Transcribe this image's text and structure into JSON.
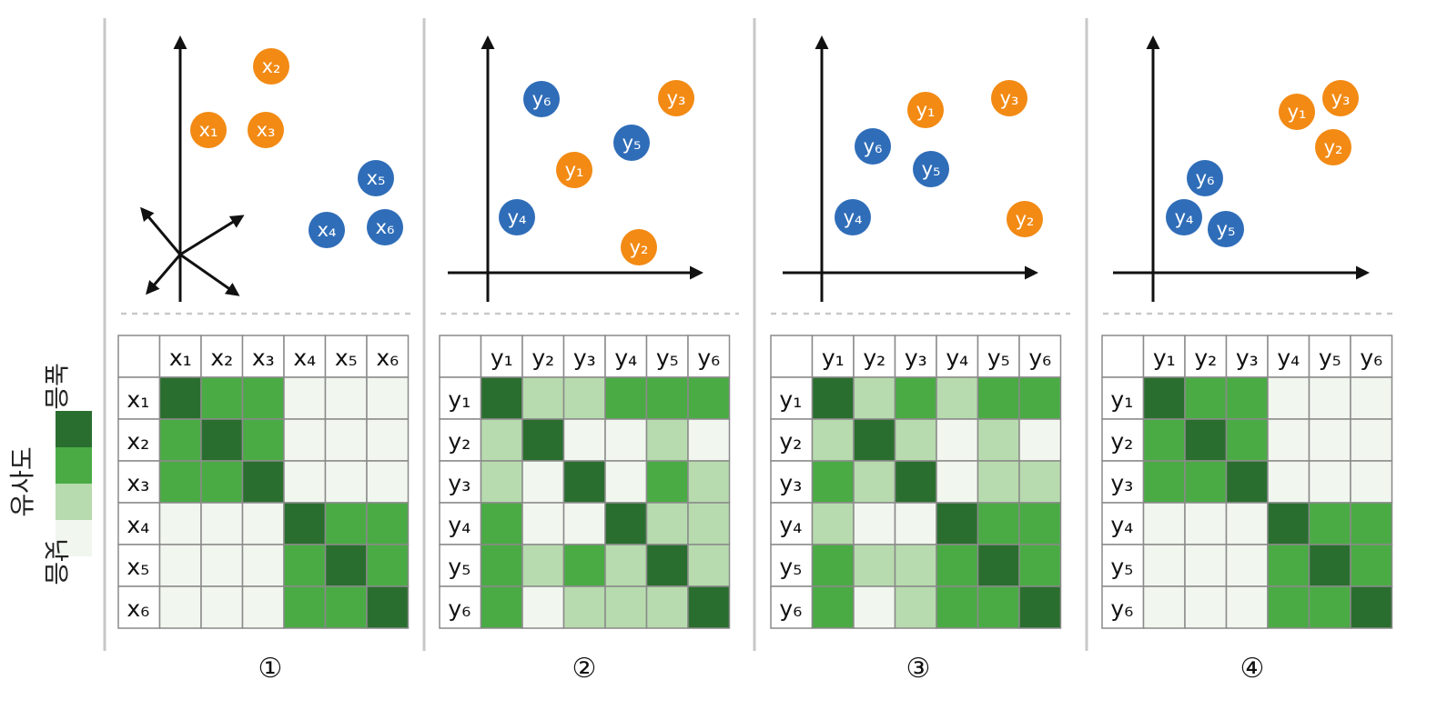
{
  "colors": {
    "orange": "#f28a14",
    "blue": "#2f6db8",
    "level_3": "#2a6e2f",
    "level_2": "#4aab45",
    "level_1": "#b7dbae",
    "level_0": "#f1f6ef"
  },
  "legend": {
    "high_label": "높음",
    "title": "유사도",
    "low_label": "낮음"
  },
  "panels": [
    {
      "number": "①",
      "axis_style": "3d",
      "var": "x",
      "headers": [
        "x₁",
        "x₂",
        "x₃",
        "x₄",
        "x₅",
        "x₆"
      ],
      "points": [
        {
          "label": "x₁",
          "color": "orange"
        },
        {
          "label": "x₂",
          "color": "orange"
        },
        {
          "label": "x₃",
          "color": "orange"
        },
        {
          "label": "x₄",
          "color": "blue"
        },
        {
          "label": "x₅",
          "color": "blue"
        },
        {
          "label": "x₆",
          "color": "blue"
        }
      ],
      "matrix": [
        [
          3,
          2,
          2,
          0,
          0,
          0
        ],
        [
          2,
          3,
          2,
          0,
          0,
          0
        ],
        [
          2,
          2,
          3,
          0,
          0,
          0
        ],
        [
          0,
          0,
          0,
          3,
          2,
          2
        ],
        [
          0,
          0,
          0,
          2,
          3,
          2
        ],
        [
          0,
          0,
          0,
          2,
          2,
          3
        ]
      ]
    },
    {
      "number": "②",
      "axis_style": "2d",
      "var": "y",
      "headers": [
        "y₁",
        "y₂",
        "y₃",
        "y₄",
        "y₅",
        "y₆"
      ],
      "points": [
        {
          "label": "y₆",
          "color": "blue"
        },
        {
          "label": "y₃",
          "color": "orange"
        },
        {
          "label": "y₅",
          "color": "blue"
        },
        {
          "label": "y₁",
          "color": "orange"
        },
        {
          "label": "y₄",
          "color": "blue"
        },
        {
          "label": "y₂",
          "color": "orange"
        }
      ],
      "matrix": [
        [
          3,
          1,
          1,
          2,
          2,
          2
        ],
        [
          1,
          3,
          0,
          0,
          1,
          0
        ],
        [
          1,
          0,
          3,
          0,
          2,
          1
        ],
        [
          2,
          0,
          0,
          3,
          1,
          1
        ],
        [
          2,
          1,
          2,
          1,
          3,
          1
        ],
        [
          2,
          0,
          1,
          1,
          1,
          3
        ]
      ]
    },
    {
      "number": "③",
      "axis_style": "2d",
      "var": "y",
      "headers": [
        "y₁",
        "y₂",
        "y₃",
        "y₄",
        "y₅",
        "y₆"
      ],
      "points": [
        {
          "label": "y₁",
          "color": "orange"
        },
        {
          "label": "y₃",
          "color": "orange"
        },
        {
          "label": "y₆",
          "color": "blue"
        },
        {
          "label": "y₅",
          "color": "blue"
        },
        {
          "label": "y₄",
          "color": "blue"
        },
        {
          "label": "y₂",
          "color": "orange"
        }
      ],
      "matrix": [
        [
          3,
          1,
          2,
          1,
          2,
          2
        ],
        [
          1,
          3,
          1,
          0,
          1,
          0
        ],
        [
          2,
          1,
          3,
          0,
          1,
          1
        ],
        [
          1,
          0,
          0,
          3,
          2,
          2
        ],
        [
          2,
          1,
          1,
          2,
          3,
          2
        ],
        [
          2,
          0,
          1,
          2,
          2,
          3
        ]
      ]
    },
    {
      "number": "④",
      "axis_style": "2d",
      "var": "y",
      "headers": [
        "y₁",
        "y₂",
        "y₃",
        "y₄",
        "y₅",
        "y₆"
      ],
      "points": [
        {
          "label": "y₁",
          "color": "orange"
        },
        {
          "label": "y₃",
          "color": "orange"
        },
        {
          "label": "y₂",
          "color": "orange"
        },
        {
          "label": "y₆",
          "color": "blue"
        },
        {
          "label": "y₄",
          "color": "blue"
        },
        {
          "label": "y₅",
          "color": "blue"
        }
      ],
      "matrix": [
        [
          3,
          2,
          2,
          0,
          0,
          0
        ],
        [
          2,
          3,
          2,
          0,
          0,
          0
        ],
        [
          2,
          2,
          3,
          0,
          0,
          0
        ],
        [
          0,
          0,
          0,
          3,
          2,
          2
        ],
        [
          0,
          0,
          0,
          2,
          3,
          2
        ],
        [
          0,
          0,
          0,
          2,
          2,
          3
        ]
      ]
    }
  ]
}
